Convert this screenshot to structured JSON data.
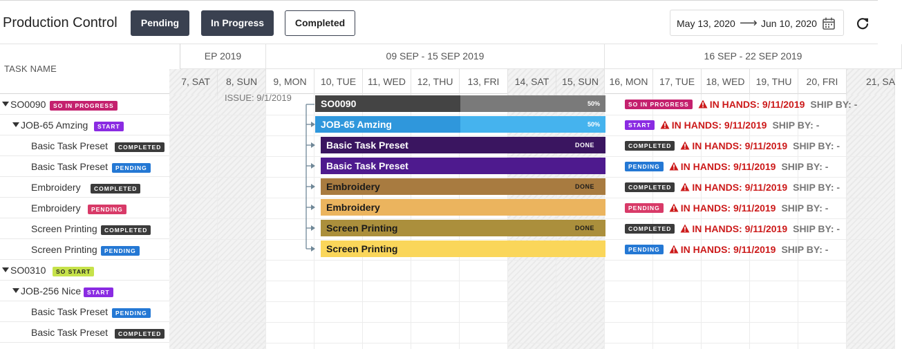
{
  "toolbar": {
    "title": "Production Control",
    "buttons": {
      "pending": "Pending",
      "in_progress": "In Progress",
      "completed": "Completed"
    },
    "date_from": "May 13, 2020",
    "date_arrow": "⟶",
    "date_to": "Jun 10, 2020",
    "icons": [
      "calendar-icon",
      "refresh-icon"
    ]
  },
  "left_panel": {
    "header": "TASK NAME",
    "rows": [
      {
        "name": "SO0090",
        "badge": "SO IN PROGRESS",
        "badge_color": "#c4216e"
      },
      {
        "name": "JOB-65 Amzing",
        "badge": "START",
        "badge_color": "#8a2be2"
      },
      {
        "name": "Basic Task Preset",
        "badge": "COMPLETED",
        "badge_color": "#3b3b3b"
      },
      {
        "name": "Basic Task Preset",
        "badge": "PENDING",
        "badge_color": "#2478d4"
      },
      {
        "name": "Embroidery",
        "badge": "COMPLETED",
        "badge_color": "#3b3b3b"
      },
      {
        "name": "Embroidery",
        "badge": "PENDING",
        "badge_color": "#d83a68"
      },
      {
        "name": "Screen Printing",
        "badge": "COMPLETED",
        "badge_color": "#3b3b3b"
      },
      {
        "name": "Screen Printing",
        "badge": "PENDING",
        "badge_color": "#2478d4"
      },
      {
        "name": "SO0310",
        "badge": "SO START",
        "badge_color": "#c6e24a"
      },
      {
        "name": "JOB-256 Nice",
        "badge": "START",
        "badge_color": "#8a2be2"
      },
      {
        "name": "Basic Task Preset",
        "badge": "PENDING",
        "badge_color": "#2478d4"
      },
      {
        "name": "Basic Task Preset",
        "badge": "COMPLETED",
        "badge_color": "#3b3b3b"
      }
    ]
  },
  "timeline": {
    "weeks": [
      "EP 2019",
      "09 SEP - 15 SEP 2019",
      "16 SEP - 22 SEP 2019"
    ],
    "days": [
      "7, SAT",
      "8, SUN",
      "9, MON",
      "10, TUE",
      "11, WED",
      "12, THU",
      "13, FRI",
      "14, SAT",
      "15, SUN",
      "16, MON",
      "17, TUE",
      "18, WED",
      "19, THU",
      "20, FRI",
      "21, SA"
    ],
    "issue": "ISSUE: 9/1/2019",
    "bars": [
      {
        "label": "SO0090",
        "tag": "50%",
        "progress": 0.5,
        "bg": "#7a7a7a",
        "fill": "#444444",
        "fg": "#ffffff"
      },
      {
        "label": "JOB-65 Amzing",
        "tag": "50%",
        "progress": 0.5,
        "bg": "#45b3ee",
        "fill": "#2f97dc",
        "fg": "#ffffff"
      },
      {
        "label": "Basic Task Preset",
        "tag": "DONE",
        "progress": 1,
        "bg": "#3a1560",
        "fill": "#3a1560",
        "fg": "#ffffff"
      },
      {
        "label": "Basic Task Preset",
        "tag": "",
        "progress": 0,
        "bg": "#4e1a8e",
        "fill": "#4e1a8e",
        "fg": "#ffffff"
      },
      {
        "label": "Embroidery",
        "tag": "DONE",
        "progress": 1,
        "bg": "#a87b40",
        "fill": "#a87b40",
        "fg": "#1a1a1a"
      },
      {
        "label": "Embroidery",
        "tag": "",
        "progress": 0,
        "bg": "#ebb45e",
        "fill": "#ebb45e",
        "fg": "#1a1a1a"
      },
      {
        "label": "Screen Printing",
        "tag": "DONE",
        "progress": 1,
        "bg": "#ab8f3c",
        "fill": "#ab8f3c",
        "fg": "#1a1a1a"
      },
      {
        "label": "Screen Printing",
        "tag": "",
        "progress": 0,
        "bg": "#fad65a",
        "fill": "#fad65a",
        "fg": "#1a1a1a"
      }
    ],
    "meta": [
      {
        "badge": "SO IN PROGRESS",
        "badge_color": "#c4216e",
        "in_hands": "IN HANDS: 9/11/2019",
        "ship_by": "SHIP BY: -"
      },
      {
        "badge": "START",
        "badge_color": "#8a2be2",
        "in_hands": "IN HANDS: 9/11/2019",
        "ship_by": "SHIP BY: -"
      },
      {
        "badge": "COMPLETED",
        "badge_color": "#3b3b3b",
        "in_hands": "IN HANDS: 9/11/2019",
        "ship_by": "SHIP BY: -"
      },
      {
        "badge": "PENDING",
        "badge_color": "#2478d4",
        "in_hands": "IN HANDS: 9/11/2019",
        "ship_by": "SHIP BY: -"
      },
      {
        "badge": "COMPLETED",
        "badge_color": "#3b3b3b",
        "in_hands": "IN HANDS: 9/11/2019",
        "ship_by": "SHIP BY: -"
      },
      {
        "badge": "PENDING",
        "badge_color": "#d83a68",
        "in_hands": "IN HANDS: 9/11/2019",
        "ship_by": "SHIP BY: -"
      },
      {
        "badge": "COMPLETED",
        "badge_color": "#3b3b3b",
        "in_hands": "IN HANDS: 9/11/2019",
        "ship_by": "SHIP BY: -"
      },
      {
        "badge": "PENDING",
        "badge_color": "#2478d4",
        "in_hands": "IN HANDS: 9/11/2019",
        "ship_by": "SHIP BY: -"
      }
    ]
  }
}
